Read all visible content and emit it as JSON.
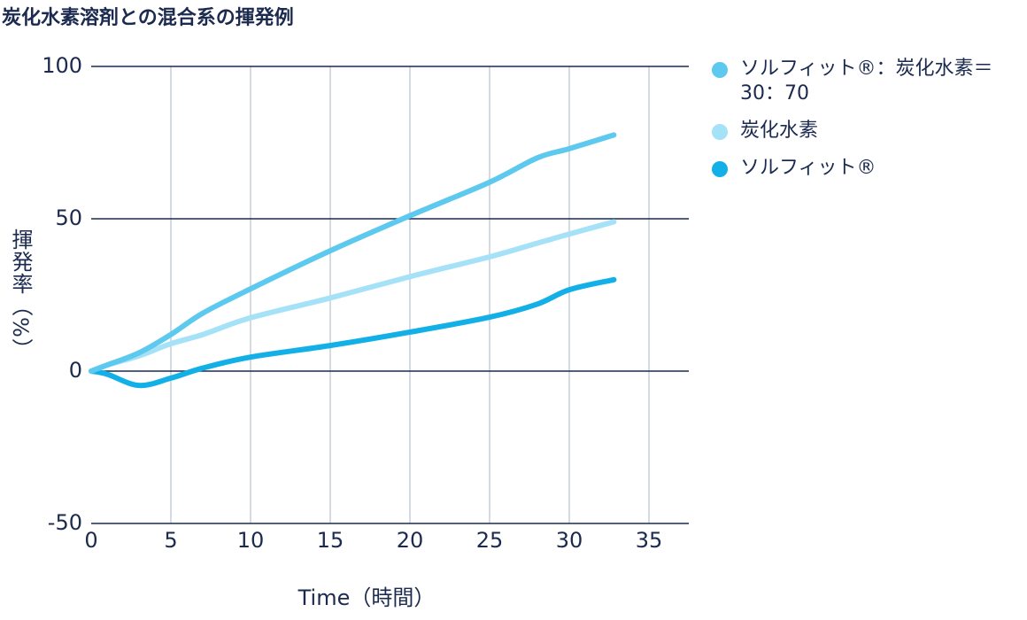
{
  "chart_data": {
    "type": "line",
    "title": "炭化水素溶剤との混合系の揮発例",
    "x_label": "Time（時間）",
    "y_label": "揮発率（%）",
    "x": [
      0,
      1,
      3,
      5,
      7,
      10,
      15,
      20,
      25,
      28,
      30,
      32.8
    ],
    "series": [
      {
        "name": "ソルフィット®：炭化水素＝30：70",
        "color": "#5ec9ef",
        "values": [
          0,
          2,
          6,
          12,
          19,
          27,
          39.5,
          51,
          62,
          70,
          73,
          77.5
        ]
      },
      {
        "name": "炭化水素",
        "color": "#a5e2f7",
        "values": [
          0,
          2,
          5,
          9,
          12,
          17.5,
          24,
          31,
          37.5,
          42,
          45,
          49
        ]
      },
      {
        "name": "ソルフィット®",
        "color": "#12b0e6",
        "values": [
          0,
          -1,
          -4.7,
          -2.3,
          1,
          4.6,
          8.4,
          12.8,
          17.7,
          22,
          26.7,
          30
        ]
      }
    ],
    "xlim": [
      0,
      37.5
    ],
    "xticks": [
      0,
      5,
      10,
      15,
      20,
      25,
      30,
      35
    ],
    "ylim": [
      -50,
      100
    ],
    "yticks": [
      -50,
      0,
      50,
      100
    ],
    "grid": true,
    "legend": "right"
  }
}
